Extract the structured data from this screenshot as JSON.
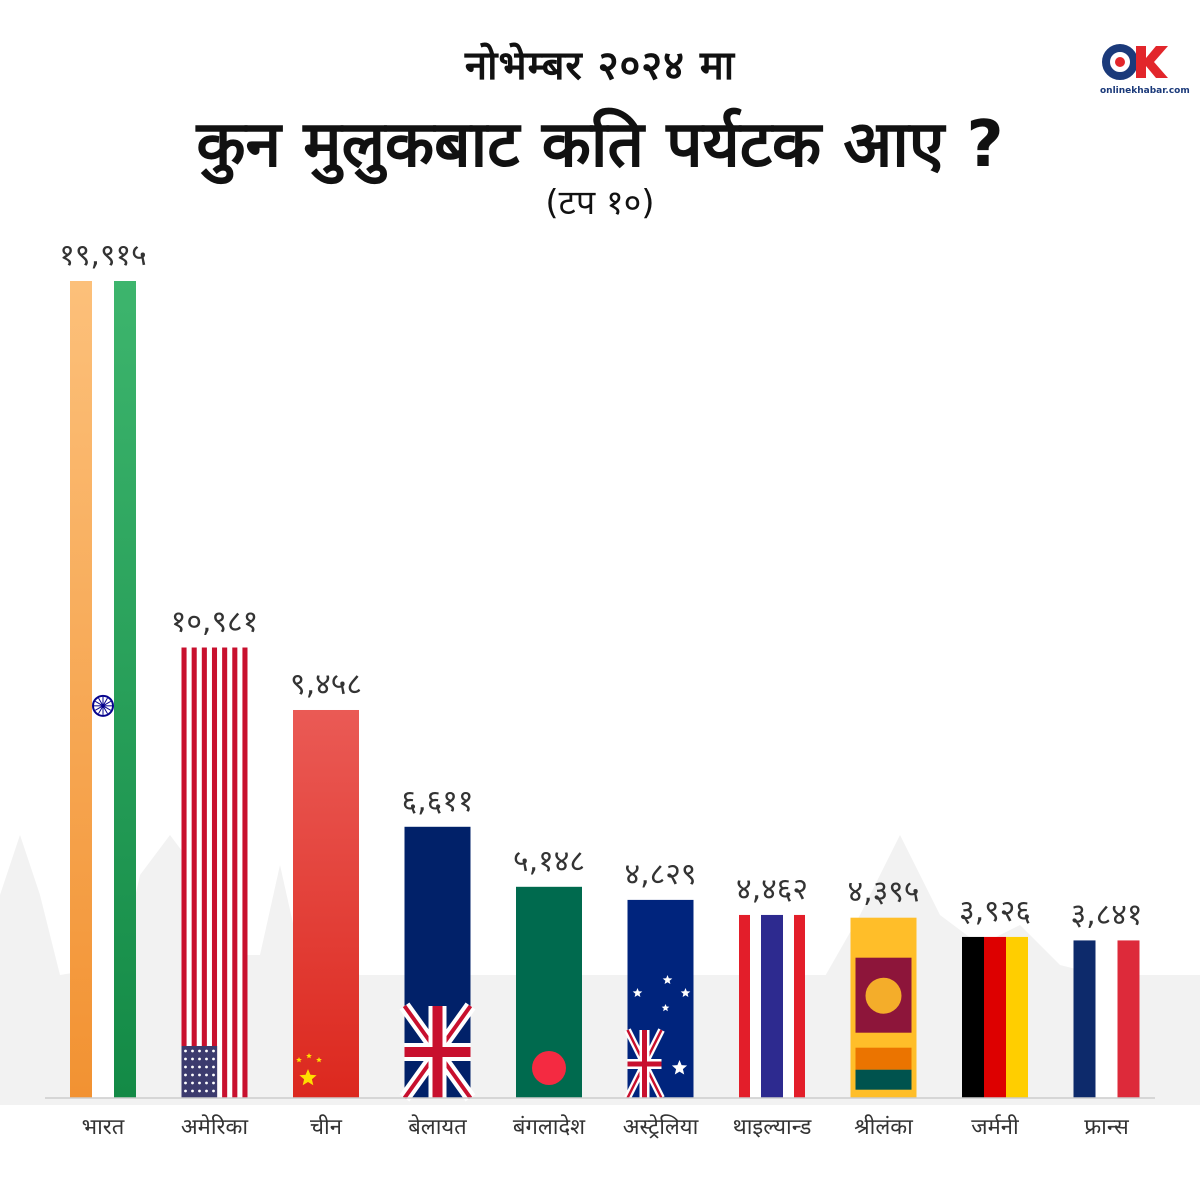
{
  "header": {
    "subtitle_top": "नोभेम्बर २०२४ मा",
    "title": "कुन मुलुकबाट कति पर्यटक आए ?",
    "subtitle_bottom": "(टप १०)"
  },
  "logo": {
    "text": "onlinekhabar.com",
    "mark": "OK"
  },
  "colors": {
    "baseline": "#cccccc",
    "india_saffron": "#f7a043",
    "india_green": "#1f9a54",
    "usa_red": "#c8102e",
    "usa_blue": "#3c3b6e",
    "china_red": "#e02b20",
    "uk_blue": "#012169",
    "bangladesh_green": "#006a4e",
    "bangladesh_red": "#f42a41",
    "australia_blue": "#00247d",
    "thailand_red": "#e31e2a",
    "thailand_blue": "#2d2a8f",
    "srilanka_gold": "#ffbe29",
    "srilanka_maroon": "#8d153a",
    "srilanka_orange": "#eb7400",
    "srilanka_green": "#00534e",
    "germany_black": "#000000",
    "germany_red": "#dd0000",
    "germany_gold": "#ffce00",
    "france_blue": "#0d2a6b",
    "france_red": "#dd2a3a"
  },
  "chart_data": {
    "type": "bar",
    "title": "कुन मुलुकबाट कति पर्यटक आए ?",
    "categories": [
      "भारत",
      "अमेरिका",
      "चीन",
      "बेलायत",
      "बंगलादेश",
      "अस्ट्रेलिया",
      "थाइल्यान्ड",
      "श्रीलंका",
      "जर्मनी",
      "फ्रान्स"
    ],
    "values": [
      19915,
      10981,
      9458,
      6611,
      5148,
      4829,
      4462,
      4395,
      3926,
      3841
    ],
    "value_labels": [
      "१९,९१५",
      "१०,९८१",
      "९,४५८",
      "६,६११",
      "५,१४८",
      "४,८२९",
      "४,४६२",
      "४,३९५",
      "३,९२६",
      "३,८४१"
    ],
    "bar_styles": [
      "india",
      "usa",
      "china",
      "uk",
      "bangladesh",
      "australia",
      "thailand",
      "srilanka",
      "germany",
      "france"
    ],
    "ylim": [
      0,
      19915
    ],
    "grid": false,
    "legend": "none"
  }
}
